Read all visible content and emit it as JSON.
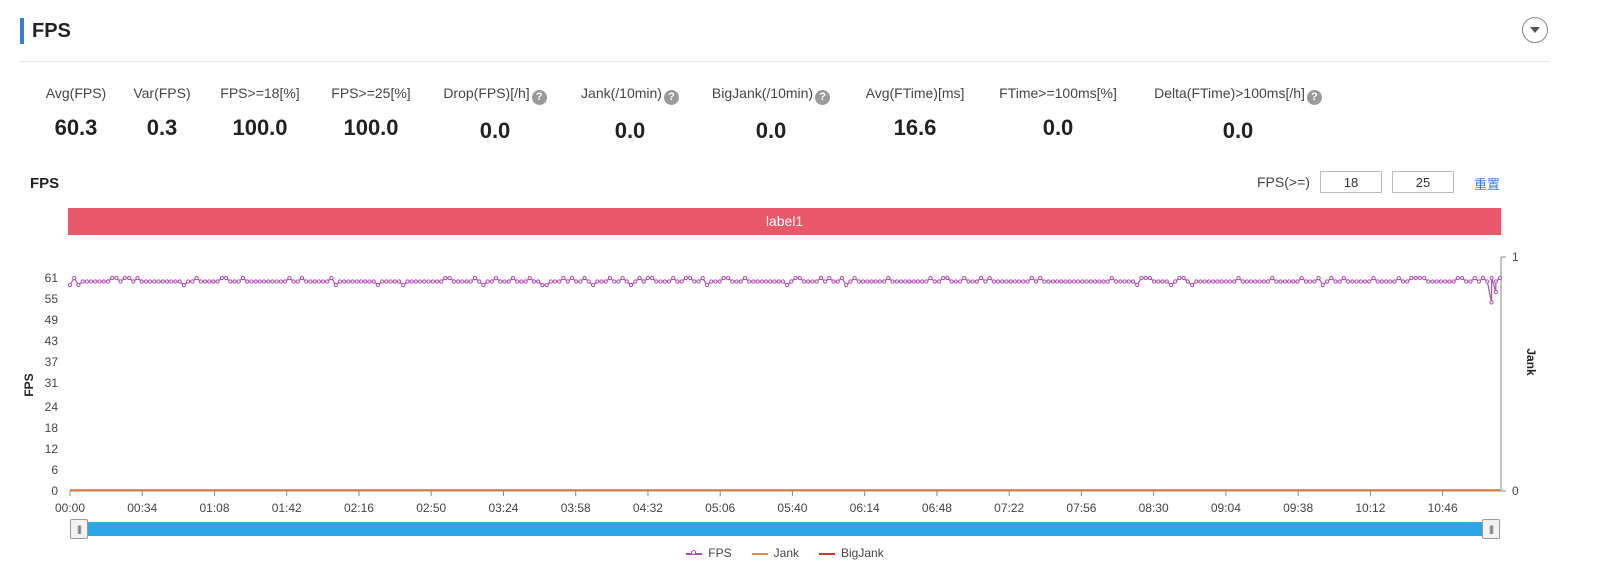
{
  "header": {
    "title": "FPS"
  },
  "stats": [
    {
      "label": "Avg(FPS)",
      "value": "60.3",
      "help": false
    },
    {
      "label": "Var(FPS)",
      "value": "0.3",
      "help": false
    },
    {
      "label": "FPS>=18[%]",
      "value": "100.0",
      "help": false
    },
    {
      "label": "FPS>=25[%]",
      "value": "100.0",
      "help": false
    },
    {
      "label": "Drop(FPS)[/h]",
      "value": "0.0",
      "help": true
    },
    {
      "label": "Jank(/10min)",
      "value": "0.0",
      "help": true
    },
    {
      "label": "BigJank(/10min)",
      "value": "0.0",
      "help": true
    },
    {
      "label": "Avg(FTime)[ms]",
      "value": "16.6",
      "help": false
    },
    {
      "label": "FTime>=100ms[%]",
      "value": "0.0",
      "help": false
    },
    {
      "label": "Delta(FTime)>100ms[/h]",
      "value": "0.0",
      "help": true
    }
  ],
  "chart_section": {
    "title": "FPS",
    "threshold_label": "FPS(>=)",
    "threshold_low": "18",
    "threshold_high": "25",
    "reset_label": "重置",
    "band_label": "label1"
  },
  "icons": {
    "help": "question-circle-icon",
    "collapse": "chevron-down-icon",
    "slider_grip": "grip-icon"
  },
  "colors": {
    "accent": "#3a7bd5",
    "band": "#e9576a",
    "fps": "#b14db3",
    "jank": "#f08a3e",
    "bigjank": "#c0392b",
    "slider": "#29a6e3"
  },
  "chart_data": {
    "type": "line",
    "ylabel": "FPS",
    "y2label": "Jank",
    "y_ticks": [
      0,
      6,
      12,
      18,
      24,
      31,
      37,
      43,
      49,
      55,
      61
    ],
    "y2_ticks": [
      0,
      1
    ],
    "ylim": [
      0,
      61
    ],
    "y2lim": [
      0,
      1
    ],
    "x_ticks": [
      "00:00",
      "00:34",
      "01:08",
      "01:42",
      "02:16",
      "02:50",
      "03:24",
      "03:58",
      "04:32",
      "05:06",
      "05:40",
      "06:14",
      "06:48",
      "07:22",
      "07:56",
      "08:30",
      "09:04",
      "09:38",
      "10:12",
      "10:46"
    ],
    "x_range_seconds": [
      0,
      673
    ],
    "grid": false,
    "legend_position": "bottom-center",
    "series": [
      {
        "name": "FPS",
        "axis": "left",
        "marker": "circle",
        "typical_value": 60,
        "range": [
          59,
          61
        ],
        "dips": [
          {
            "t": "11:09",
            "value": 54
          },
          {
            "t": "11:11",
            "value": 57
          }
        ]
      },
      {
        "name": "Jank",
        "axis": "right",
        "constant": 0
      },
      {
        "name": "BigJank",
        "axis": "right",
        "constant": 0
      }
    ]
  }
}
